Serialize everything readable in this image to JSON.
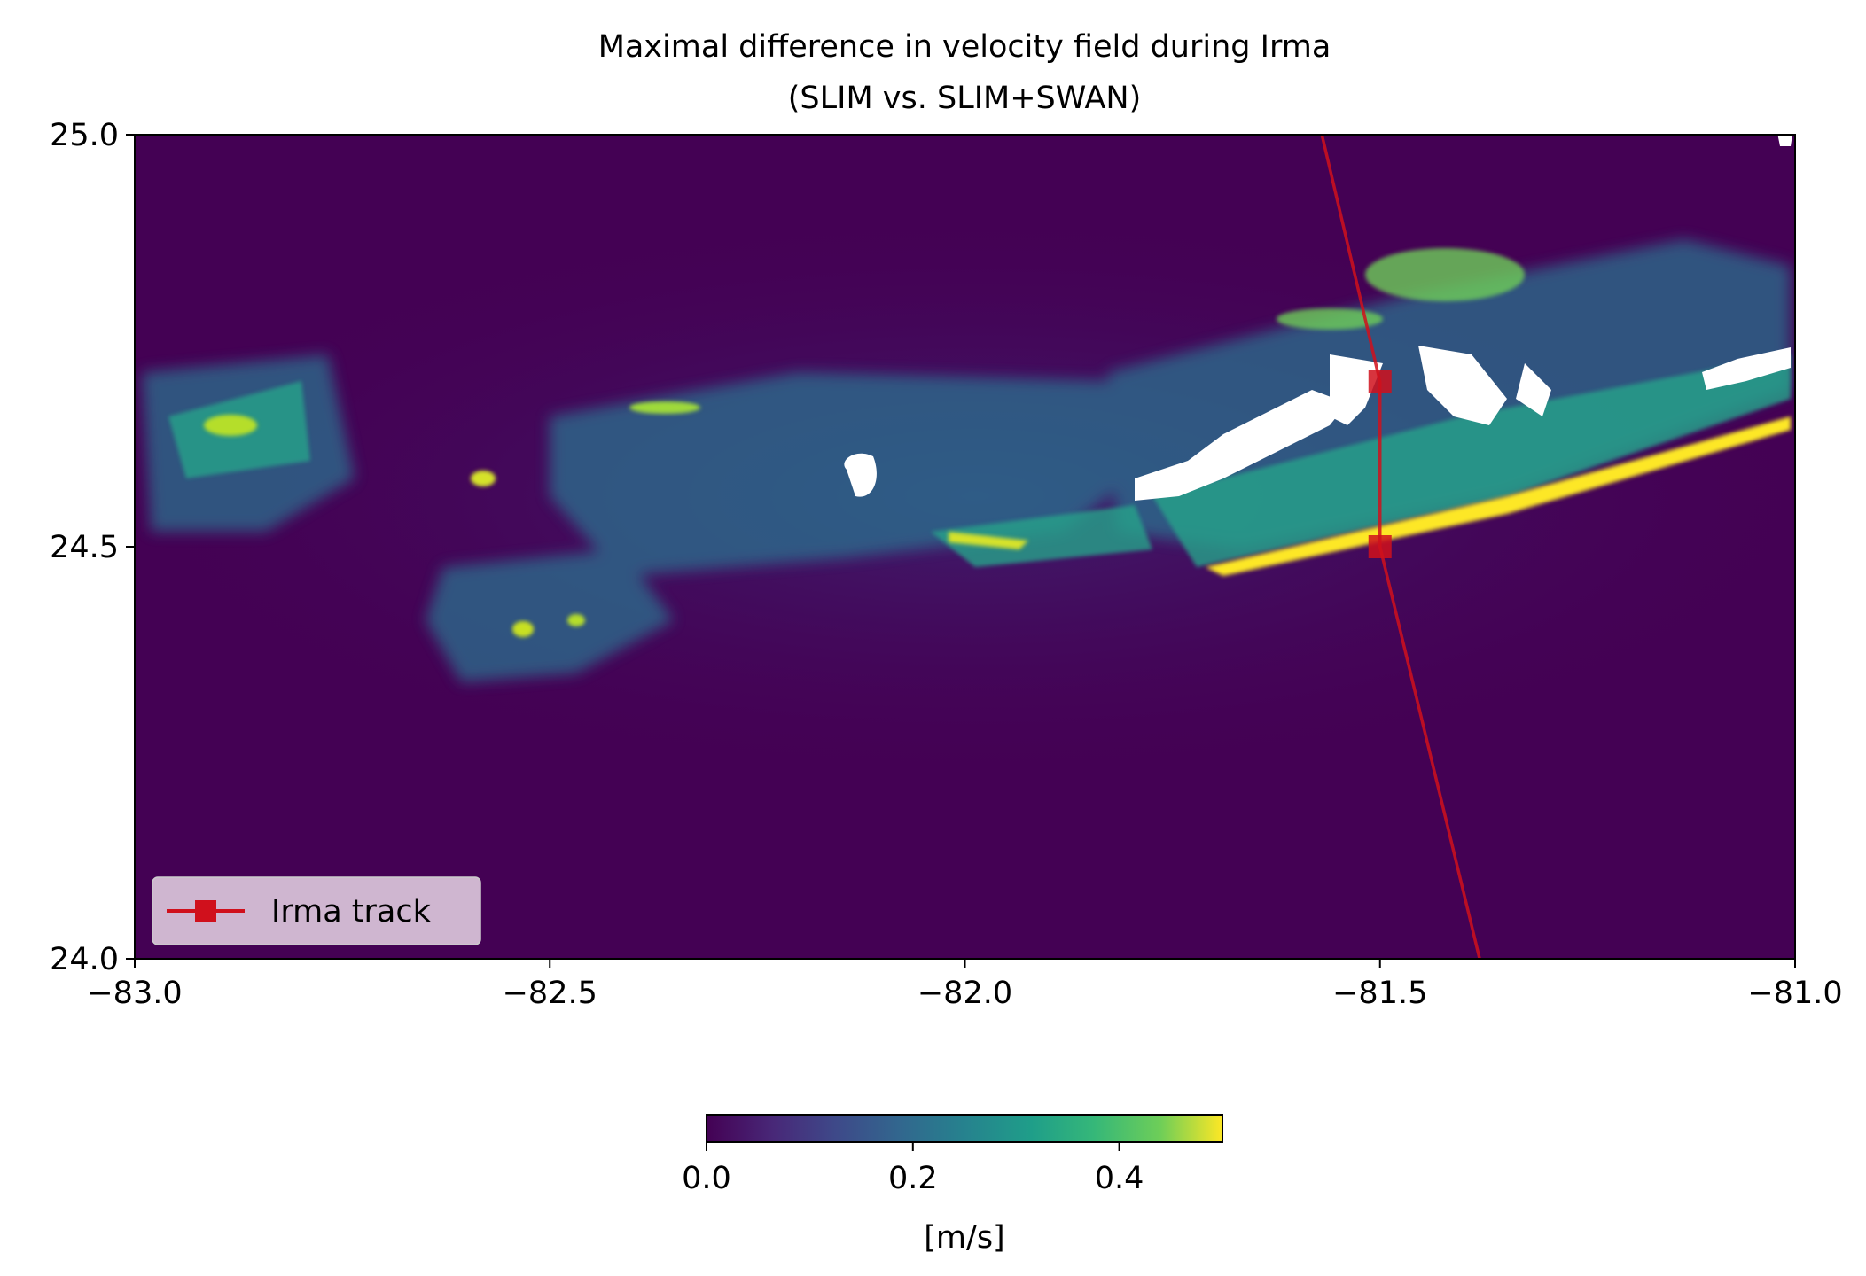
{
  "chart_data": {
    "type": "heatmap",
    "title_line1": "Maximal difference in velocity field during Irma",
    "title_line2": "(SLIM vs. SLIM+SWAN)",
    "xlabel": "",
    "ylabel": "",
    "xlim": [
      -83.0,
      -81.0
    ],
    "ylim": [
      24.0,
      25.0
    ],
    "x_ticks": [
      -83.0,
      -82.5,
      -82.0,
      -81.5,
      -81.0
    ],
    "x_tick_labels": [
      "−83.0",
      "−82.5",
      "−82.0",
      "−81.5",
      "−81.0"
    ],
    "y_ticks": [
      24.0,
      24.5,
      25.0
    ],
    "y_tick_labels": [
      "24.0",
      "24.5",
      "25.0"
    ],
    "grid": false,
    "colormap": "viridis",
    "colorbar": {
      "range": [
        0.0,
        0.5
      ],
      "ticks": [
        0.0,
        0.2,
        0.4
      ],
      "tick_labels": [
        "0.0",
        "0.2",
        "0.4"
      ],
      "label": "[m/s]",
      "orientation": "horizontal"
    },
    "series": [
      {
        "name": "Irma track",
        "type": "line",
        "color": "#d0101c",
        "marker": "square",
        "x": [
          -81.57,
          -81.5,
          -81.5,
          -81.38
        ],
        "y": [
          25.0,
          24.7,
          24.5,
          24.0
        ]
      }
    ],
    "track_markers": [
      {
        "x": -81.5,
        "y": 24.7
      },
      {
        "x": -81.5,
        "y": 24.5
      }
    ],
    "legend": {
      "placement": "lower-left",
      "entries": [
        "Irma track"
      ]
    }
  },
  "colors": {
    "viridis_low": "#440154",
    "viridis_mid": "#21918c",
    "viridis_high": "#fde725",
    "track": "#d0101c",
    "land": "#ffffff"
  }
}
